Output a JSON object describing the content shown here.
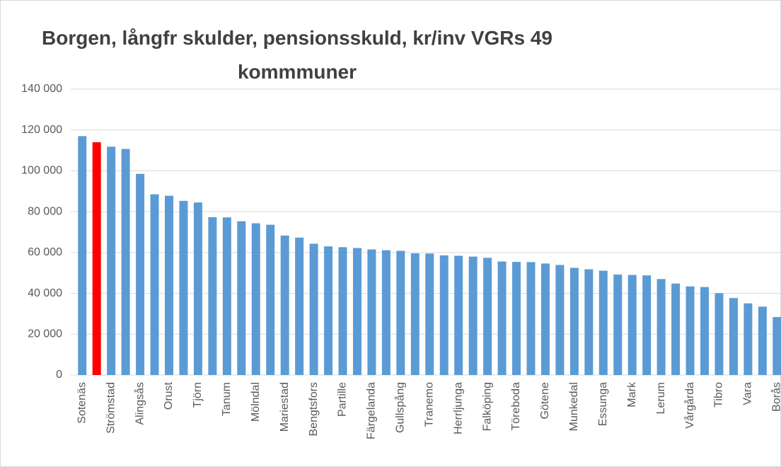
{
  "chart_data": {
    "type": "bar",
    "title": "Borgen, långfr skulder, pensionsskuld, kr/inv VGRs 49 kommmuner",
    "categories": [
      "Sotenäs",
      null,
      "Strömstad",
      null,
      "Alingsås",
      null,
      "Orust",
      null,
      "Tjörn",
      null,
      "Tanum",
      null,
      "Mölndal",
      null,
      "Mariestad",
      null,
      "Bengtsfors",
      null,
      "Partille",
      null,
      "Färgelanda",
      null,
      "Gullspång",
      null,
      "Tranemo",
      null,
      "Herrljunga",
      null,
      "Falköping",
      null,
      "Töreboda",
      null,
      "Götene",
      null,
      "Munkedal",
      null,
      "Essunga",
      null,
      "Mark",
      null,
      "Lerum",
      null,
      "Vårgårda",
      null,
      "Tibro",
      null,
      "Vara",
      null,
      "Borås"
    ],
    "values": [
      117000,
      114000,
      111800,
      110700,
      98500,
      88500,
      87800,
      85300,
      84500,
      77300,
      77200,
      75300,
      74300,
      73600,
      68300,
      67300,
      64300,
      63000,
      62600,
      62200,
      61500,
      61100,
      60800,
      59600,
      59500,
      58600,
      58400,
      58000,
      57400,
      55600,
      55400,
      55300,
      54600,
      53900,
      52500,
      51800,
      51100,
      49200,
      49000,
      48800,
      47000,
      44800,
      43400,
      43100,
      40100,
      37700,
      35100,
      33500,
      28400
    ],
    "colors": [
      "#5b9bd5",
      "#ff0000",
      "#5b9bd5",
      "#5b9bd5",
      "#5b9bd5",
      "#5b9bd5",
      "#5b9bd5",
      "#5b9bd5",
      "#5b9bd5",
      "#5b9bd5",
      "#5b9bd5",
      "#5b9bd5",
      "#5b9bd5",
      "#5b9bd5",
      "#5b9bd5",
      "#5b9bd5",
      "#5b9bd5",
      "#5b9bd5",
      "#5b9bd5",
      "#5b9bd5",
      "#5b9bd5",
      "#5b9bd5",
      "#5b9bd5",
      "#5b9bd5",
      "#5b9bd5",
      "#5b9bd5",
      "#5b9bd5",
      "#5b9bd5",
      "#5b9bd5",
      "#5b9bd5",
      "#5b9bd5",
      "#5b9bd5",
      "#5b9bd5",
      "#5b9bd5",
      "#5b9bd5",
      "#5b9bd5",
      "#5b9bd5",
      "#5b9bd5",
      "#5b9bd5",
      "#5b9bd5",
      "#5b9bd5",
      "#5b9bd5",
      "#5b9bd5",
      "#5b9bd5",
      "#5b9bd5",
      "#5b9bd5",
      "#5b9bd5",
      "#5b9bd5",
      "#5b9bd5"
    ],
    "ylim": [
      0,
      140000
    ],
    "yticks": [
      0,
      {
        "value": 20000,
        "label": "20 000"
      },
      {
        "value": 40000,
        "label": "40 000"
      },
      {
        "value": 60000,
        "label": "60 000"
      },
      {
        "value": 80000,
        "label": "80 000"
      },
      {
        "value": 100000,
        "label": "100 000"
      },
      {
        "value": 120000,
        "label": "120 000"
      },
      {
        "value": 140000,
        "label": "140 000"
      }
    ],
    "grid": true
  }
}
